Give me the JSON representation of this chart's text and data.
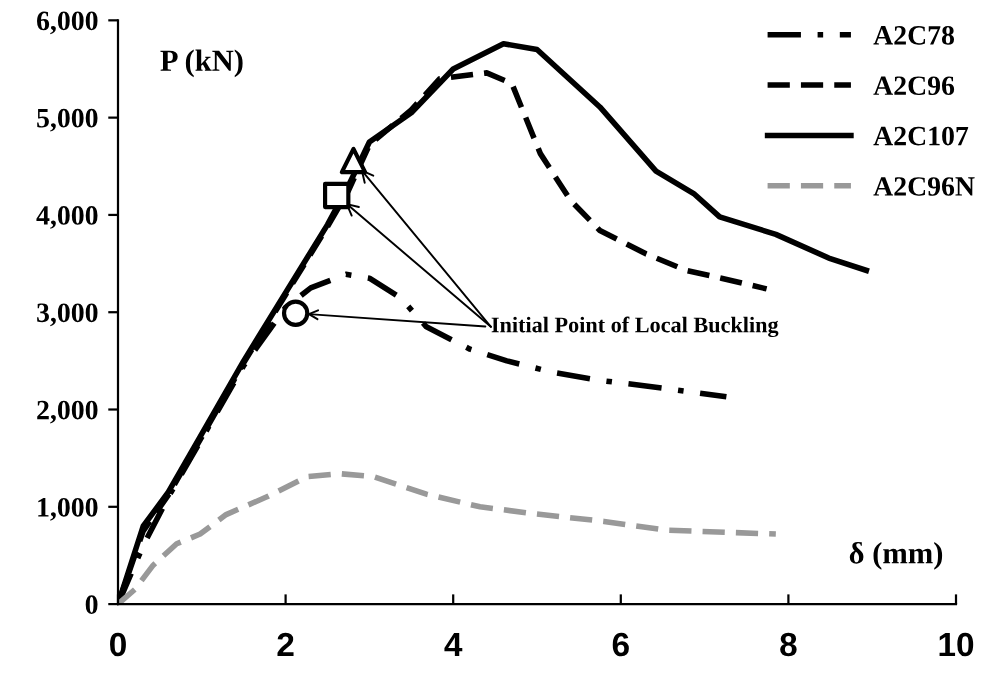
{
  "chart_data": {
    "type": "line",
    "xlabel": "δ (mm)",
    "ylabel": "P (kN)",
    "xlim": [
      0,
      10
    ],
    "xticks": [
      0,
      2,
      4,
      6,
      8,
      10
    ],
    "ylim": [
      0,
      6000
    ],
    "yticks": [
      {
        "value": 0,
        "label": "0"
      },
      {
        "value": 1000,
        "label": "1,000"
      },
      {
        "value": 2000,
        "label": "2,000"
      },
      {
        "value": 3000,
        "label": "3,000"
      },
      {
        "value": 4000,
        "label": "4,000"
      },
      {
        "value": 5000,
        "label": "5,000"
      },
      {
        "value": 6000,
        "label": "6,000"
      }
    ],
    "grid": false,
    "legend": "top right",
    "series": [
      {
        "name": "A2C78",
        "color": "#000000",
        "line_style": "dashdot",
        "x": [
          0,
          0.3,
          0.6,
          1,
          1.5,
          2,
          2.3,
          2.72,
          3.0,
          3.37,
          3.68,
          4.2,
          4.64,
          5.2,
          5.75,
          6.5,
          7.26
        ],
        "values": [
          0,
          600,
          1100,
          1700,
          2450,
          3050,
          3250,
          3390,
          3350,
          3150,
          2850,
          2620,
          2500,
          2380,
          2300,
          2220,
          2130
        ]
      },
      {
        "name": "A2C96",
        "color": "#000000",
        "line_style": "dashed",
        "x": [
          0,
          0.3,
          0.6,
          1,
          1.5,
          2,
          2.5,
          2.75,
          3,
          3.5,
          3.84,
          4.4,
          4.7,
          5.04,
          5.4,
          5.75,
          6.3,
          6.78,
          7.2,
          7.74
        ],
        "values": [
          0,
          750,
          1120,
          1720,
          2480,
          3180,
          3880,
          4250,
          4720,
          5080,
          5400,
          5460,
          5350,
          4630,
          4150,
          3840,
          3600,
          3430,
          3350,
          3240
        ]
      },
      {
        "name": "A2C107",
        "color": "#000000",
        "line_style": "solid",
        "x": [
          0,
          0.3,
          0.6,
          1,
          1.5,
          2,
          2.5,
          2.75,
          3,
          3.5,
          4,
          4.6,
          5,
          5.75,
          6.42,
          6.87,
          7.18,
          7.85,
          8.5,
          8.93
        ],
        "values": [
          0,
          800,
          1150,
          1750,
          2500,
          3200,
          3900,
          4300,
          4750,
          5050,
          5500,
          5760,
          5700,
          5110,
          4450,
          4220,
          3980,
          3800,
          3550,
          3430
        ]
      },
      {
        "name": "A2C96N",
        "color": "#999999",
        "line_style": "dashed",
        "x": [
          0,
          0.2,
          0.42,
          0.7,
          0.98,
          1.29,
          1.77,
          2.26,
          2.65,
          3.05,
          3.68,
          4.32,
          4.96,
          5.8,
          6.54,
          7.85
        ],
        "values": [
          0,
          150,
          400,
          620,
          720,
          920,
          1100,
          1310,
          1340,
          1310,
          1130,
          1000,
          930,
          850,
          760,
          720
        ]
      },
      {
        "type": "scatter",
        "color": "#000000",
        "marker": "circle",
        "x": [
          2.12
        ],
        "values": [
          2990
        ]
      },
      {
        "type": "scatter",
        "color": "#000000",
        "marker": "square",
        "x": [
          2.61
        ],
        "values": [
          4200
        ]
      },
      {
        "type": "scatter",
        "color": "#000000",
        "marker": "triangle",
        "x": [
          2.81
        ],
        "values": [
          4560
        ]
      }
    ],
    "annotations": [
      {
        "text": "Initial Point of Local Buckling",
        "x": 2.12,
        "y": 2990
      }
    ]
  }
}
